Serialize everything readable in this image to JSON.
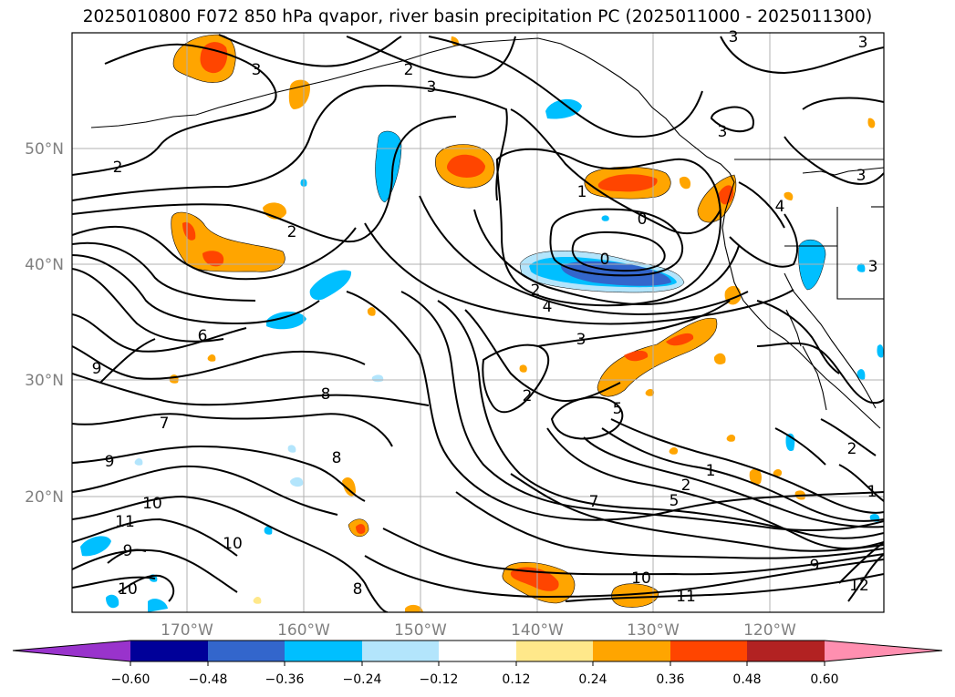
{
  "title": "2025010800 F072 850 hPa qvapor, river basin precipitation PC (2025011000 - 2025011300)",
  "map": {
    "lat_labels": [
      "50°N",
      "40°N",
      "30°N",
      "20°N"
    ],
    "lon_labels": [
      "170°W",
      "160°W",
      "150°W",
      "140°W",
      "130°W",
      "120°W"
    ],
    "contour_labels": [
      "3",
      "2",
      "3",
      "3",
      "3",
      "3",
      "2",
      "2",
      "1",
      "0",
      "0",
      "4",
      "3",
      "2",
      "4",
      "6",
      "3",
      "9",
      "8",
      "2",
      "7",
      "5",
      "9",
      "8",
      "1",
      "2",
      "5",
      "10",
      "7",
      "11",
      "10",
      "9",
      "10",
      "10",
      "11",
      "8",
      "9",
      "12",
      "3",
      "2",
      "1"
    ],
    "shading_colors": {
      "purple": "#9933cc",
      "navy": "#000099",
      "royal_blue": "#3366cc",
      "deep_sky": "#00bfff",
      "light_blue": "#b3e5fc",
      "white": "#ffffff",
      "light_yellow": "#ffe88a",
      "orange": "#ffa500",
      "red_orange": "#ff4500",
      "brick": "#b22222",
      "pink": "#ff8fb0"
    }
  },
  "colorbar": {
    "ticks": [
      "−0.60",
      "−0.48",
      "−0.36",
      "−0.24",
      "−0.12",
      "0.12",
      "0.24",
      "0.36",
      "0.48",
      "0.60"
    ],
    "colors": [
      "#9933cc",
      "#000099",
      "#3366cc",
      "#00bfff",
      "#b3e5fc",
      "#ffffff",
      "#ffe88a",
      "#ffa500",
      "#ff4500",
      "#b22222",
      "#ff8fb0"
    ]
  }
}
